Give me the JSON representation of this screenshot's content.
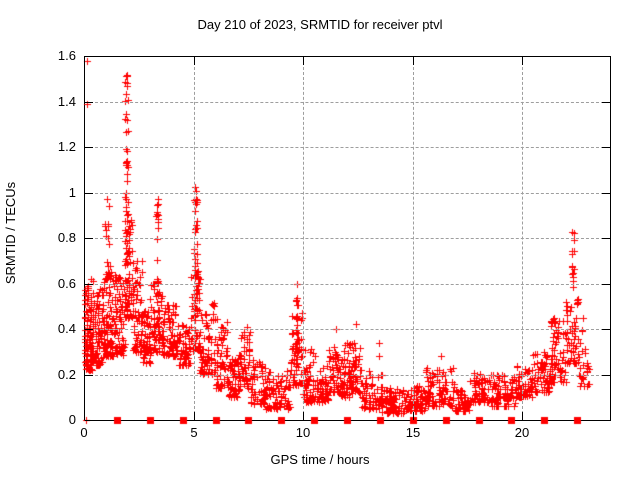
{
  "colors": {
    "marker": "#ff0000",
    "grid": "#9e9e9e",
    "axis": "#000000",
    "text": "#000000",
    "background": "#ffffff"
  },
  "chart_data": {
    "type": "scatter",
    "title": "Day 210 of 2023, SRMTID for receiver ptvl",
    "xlabel": "GPS time / hours",
    "ylabel": "SRMTID / TECUs",
    "xlim": [
      0,
      24
    ],
    "ylim": [
      0,
      1.6
    ],
    "xticks": [
      0,
      5,
      10,
      15,
      20
    ],
    "yticks": [
      0,
      0.2,
      0.4,
      0.6,
      0.8,
      1,
      1.2,
      1.4,
      1.6
    ],
    "xtick_labels": [
      "0",
      "5",
      "10",
      "15",
      "20"
    ],
    "ytick_labels": [
      "0",
      "0.2",
      "0.4",
      "0.6",
      "0.8",
      "1",
      "1.2",
      "1.4",
      "1.6"
    ],
    "grid": true,
    "legend": "none",
    "marker": {
      "shape": "plus",
      "color": "#ff0000",
      "size": 7
    },
    "baseline_markers": {
      "shape": "filled-square",
      "color": "#ff0000",
      "size": 7,
      "y": 0,
      "x": [
        1.5,
        3,
        4.5,
        6,
        7.5,
        9,
        10.5,
        12,
        13.5,
        15,
        16.5,
        18,
        19.5,
        21,
        22.5
      ]
    },
    "scatter_model": {
      "seed": 210,
      "time_snap_hours": 0.00833,
      "bands": [
        [
          0.02,
          0.4,
          0.22,
          0.62,
          95
        ],
        [
          0.4,
          0.9,
          0.24,
          0.58,
          85
        ],
        [
          0.9,
          1.4,
          0.28,
          0.66,
          85
        ],
        [
          1.4,
          1.85,
          0.28,
          0.64,
          70
        ],
        [
          1.85,
          2.2,
          0.45,
          0.88,
          55
        ],
        [
          2.2,
          2.65,
          0.3,
          0.7,
          60
        ],
        [
          2.65,
          3.0,
          0.25,
          0.5,
          50
        ],
        [
          3.0,
          3.6,
          0.3,
          0.62,
          65
        ],
        [
          3.6,
          4.3,
          0.28,
          0.52,
          70
        ],
        [
          4.3,
          4.85,
          0.24,
          0.42,
          55
        ],
        [
          4.85,
          5.3,
          0.3,
          0.68,
          45
        ],
        [
          5.3,
          6.0,
          0.2,
          0.52,
          70
        ],
        [
          6.0,
          6.55,
          0.14,
          0.45,
          55
        ],
        [
          6.55,
          7.05,
          0.1,
          0.28,
          50
        ],
        [
          7.05,
          7.6,
          0.13,
          0.42,
          55
        ],
        [
          7.6,
          8.3,
          0.07,
          0.28,
          60
        ],
        [
          8.3,
          9.4,
          0.05,
          0.22,
          85
        ],
        [
          9.4,
          9.95,
          0.15,
          0.5,
          45
        ],
        [
          9.95,
          10.6,
          0.08,
          0.32,
          55
        ],
        [
          10.6,
          11.15,
          0.08,
          0.24,
          50
        ],
        [
          11.15,
          11.7,
          0.12,
          0.32,
          55
        ],
        [
          11.7,
          12.15,
          0.1,
          0.34,
          50
        ],
        [
          12.15,
          12.65,
          0.12,
          0.35,
          50
        ],
        [
          12.65,
          13.6,
          0.05,
          0.22,
          65
        ],
        [
          13.6,
          14.6,
          0.03,
          0.14,
          75
        ],
        [
          14.6,
          15.6,
          0.04,
          0.15,
          75
        ],
        [
          15.6,
          16.9,
          0.06,
          0.23,
          90
        ],
        [
          16.9,
          17.6,
          0.04,
          0.14,
          50
        ],
        [
          17.6,
          18.6,
          0.08,
          0.22,
          70
        ],
        [
          18.6,
          19.7,
          0.06,
          0.2,
          75
        ],
        [
          19.7,
          20.45,
          0.1,
          0.24,
          60
        ],
        [
          20.45,
          21.3,
          0.12,
          0.3,
          65
        ],
        [
          21.3,
          22.0,
          0.16,
          0.45,
          70
        ],
        [
          22.0,
          22.6,
          0.25,
          0.55,
          50
        ],
        [
          22.6,
          23.1,
          0.15,
          0.45,
          25
        ]
      ],
      "spike_columns": [
        [
          1.05,
          0.25,
          0.58,
          0.99,
          18
        ],
        [
          1.95,
          0.15,
          0.5,
          1.52,
          48
        ],
        [
          3.35,
          0.12,
          0.4,
          0.98,
          30
        ],
        [
          5.1,
          0.15,
          0.35,
          1.03,
          46
        ],
        [
          9.7,
          0.1,
          0.2,
          0.63,
          26
        ],
        [
          22.3,
          0.12,
          0.58,
          0.83,
          16
        ]
      ],
      "outlier_points": [
        [
          0.14,
          1.58
        ],
        [
          0.12,
          1.39
        ],
        [
          0.1,
          0.0
        ],
        [
          11.5,
          0.4
        ],
        [
          12.4,
          0.42
        ],
        [
          13.45,
          0.34
        ],
        [
          13.45,
          0.28
        ],
        [
          15.6,
          0.22
        ],
        [
          16.3,
          0.28
        ],
        [
          21.0,
          0.3
        ],
        [
          22.95,
          0.25
        ],
        [
          23.0,
          0.16
        ]
      ]
    }
  }
}
